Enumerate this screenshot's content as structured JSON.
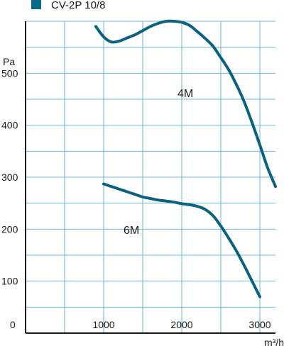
{
  "chart_data": {
    "type": "line",
    "title": "CV-2P 10/8",
    "ylabel": "Pa",
    "xlabel": "m³/h",
    "xlim": [
      0,
      3200
    ],
    "ylim": [
      0,
      600
    ],
    "x_ticks": [
      1000,
      2000,
      3000
    ],
    "y_ticks": [
      100,
      200,
      300,
      400,
      500
    ],
    "origin_label": "0",
    "grid": true,
    "colors": {
      "line": "#0a6180",
      "marker": "#0a6a8c",
      "grid": "#6ab7d8",
      "axis": "#1a1a1a"
    },
    "series": [
      {
        "name": "4M",
        "x": [
          900,
          1000,
          1100,
          1200,
          1300,
          1400,
          1500,
          1600,
          1700,
          1800,
          1900,
          2000,
          2100,
          2200,
          2300,
          2400,
          2500,
          2600,
          2700,
          2800,
          2900,
          3000,
          3100,
          3200
        ],
        "y": [
          590,
          570,
          560,
          562,
          568,
          574,
          582,
          590,
          596,
          600,
          600,
          598,
          592,
          580,
          567,
          552,
          530,
          507,
          478,
          445,
          405,
          362,
          318,
          282
        ]
      },
      {
        "name": "6M",
        "x": [
          1000,
          1100,
          1200,
          1300,
          1400,
          1500,
          1600,
          1700,
          1800,
          1900,
          2000,
          2100,
          2200,
          2300,
          2400,
          2500,
          2600,
          2700,
          2800,
          2900,
          3000
        ],
        "y": [
          287,
          282,
          277,
          272,
          267,
          262,
          259,
          256,
          254,
          252,
          249,
          247,
          244,
          238,
          226,
          206,
          183,
          158,
          130,
          100,
          70
        ]
      }
    ]
  }
}
